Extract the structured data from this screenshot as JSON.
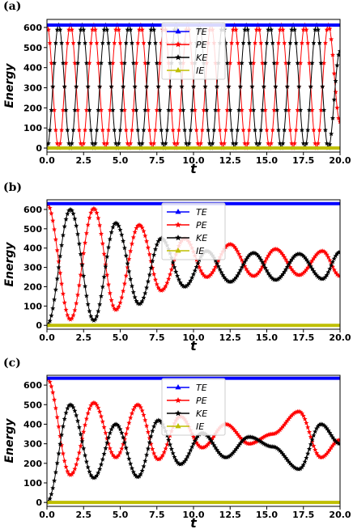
{
  "chart_data": [
    {
      "panel_label": "(a)",
      "type": "line",
      "xlabel": "t",
      "ylabel": "Energy",
      "xlim": [
        0,
        20
      ],
      "ylim": [
        -20,
        640
      ],
      "xticks": [
        "0.0",
        "2.5",
        "5.0",
        "7.5",
        "10.0",
        "12.5",
        "15.0",
        "17.5",
        "20.0"
      ],
      "yticks": [
        "0",
        "100",
        "200",
        "300",
        "400",
        "500",
        "600"
      ],
      "legend_position": "top-center",
      "series": [
        {
          "name": "TE",
          "color": "#0000ff",
          "marker": "filled-triangle",
          "x": [
            0,
            20
          ],
          "y": [
            612,
            612
          ]
        },
        {
          "name": "PE",
          "color": "#ff0000",
          "marker": "star",
          "x": [
            0,
            0.8,
            1.6,
            2.4,
            3.2,
            4.0,
            4.8,
            5.6,
            6.4,
            7.2,
            8.0,
            8.8,
            9.6,
            10.4,
            11.2,
            12.0,
            12.8,
            13.6,
            14.4,
            15.2,
            16.0,
            16.8,
            17.6,
            18.4,
            19.2,
            20.0
          ],
          "y": [
            612,
            0,
            612,
            0,
            612,
            0,
            612,
            0,
            612,
            0,
            612,
            0,
            612,
            0,
            612,
            0,
            612,
            0,
            612,
            0,
            612,
            0,
            612,
            0,
            612,
            130
          ]
        },
        {
          "name": "KE",
          "color": "#000000",
          "marker": "star",
          "x": [
            0,
            0.8,
            1.6,
            2.4,
            3.2,
            4.0,
            4.8,
            5.6,
            6.4,
            7.2,
            8.0,
            8.8,
            9.6,
            10.4,
            11.2,
            12.0,
            12.8,
            13.6,
            14.4,
            15.2,
            16.0,
            16.8,
            17.6,
            18.4,
            19.2,
            20.0
          ],
          "y": [
            0,
            612,
            0,
            612,
            0,
            612,
            0,
            612,
            0,
            612,
            0,
            612,
            0,
            612,
            0,
            612,
            0,
            612,
            0,
            612,
            0,
            612,
            0,
            612,
            0,
            482
          ]
        },
        {
          "name": "IE",
          "color": "#bfbf00",
          "marker": "filled-triangle",
          "x": [
            0,
            20
          ],
          "y": [
            0,
            0
          ]
        }
      ]
    },
    {
      "panel_label": "(b)",
      "type": "line",
      "xlabel": "t",
      "ylabel": "Energy",
      "xlim": [
        0,
        20
      ],
      "ylim": [
        -20,
        650
      ],
      "xticks": [
        "0.0",
        "2.5",
        "5.0",
        "7.5",
        "10.0",
        "12.5",
        "15.0",
        "17.5",
        "20.0"
      ],
      "yticks": [
        "0",
        "100",
        "200",
        "300",
        "400",
        "500",
        "600"
      ],
      "legend_position": "top-center",
      "series": [
        {
          "name": "TE",
          "color": "#0000ff",
          "marker": "filled-triangle",
          "x": [
            0,
            20
          ],
          "y": [
            630,
            630
          ]
        },
        {
          "name": "PE",
          "color": "#ff0000",
          "marker": "star",
          "x": [
            0,
            1.6,
            3.2,
            4.7,
            6.3,
            7.8,
            9.4,
            10.9,
            12.5,
            14.1,
            15.6,
            17.2,
            18.8,
            20.0
          ],
          "y": [
            630,
            30,
            605,
            80,
            520,
            180,
            450,
            250,
            420,
            255,
            395,
            260,
            385,
            255
          ]
        },
        {
          "name": "KE",
          "color": "#000000",
          "marker": "star",
          "x": [
            0,
            1.6,
            3.2,
            4.7,
            6.3,
            7.8,
            9.4,
            10.9,
            12.5,
            14.1,
            15.6,
            17.2,
            18.8,
            20.0
          ],
          "y": [
            0,
            600,
            25,
            530,
            110,
            450,
            200,
            385,
            225,
            375,
            235,
            370,
            240,
            380
          ]
        },
        {
          "name": "IE",
          "color": "#bfbf00",
          "marker": "filled-triangle",
          "x": [
            0,
            20
          ],
          "y": [
            0,
            0
          ]
        }
      ]
    },
    {
      "panel_label": "(c)",
      "type": "line",
      "xlabel": "t",
      "ylabel": "Energy",
      "xlim": [
        0,
        20
      ],
      "ylim": [
        -20,
        650
      ],
      "xticks": [
        "0.0",
        "2.5",
        "5.0",
        "7.5",
        "10.0",
        "12.5",
        "15.0",
        "17.5",
        "20.0"
      ],
      "yticks": [
        "0",
        "100",
        "200",
        "300",
        "400",
        "500",
        "600"
      ],
      "legend_position": "top-center",
      "series": [
        {
          "name": "TE",
          "color": "#0000ff",
          "marker": "filled-triangle",
          "x": [
            0,
            20
          ],
          "y": [
            635,
            635
          ]
        },
        {
          "name": "PE",
          "color": "#ff0000",
          "marker": "star",
          "x": [
            0,
            1.6,
            3.2,
            4.7,
            6.2,
            7.6,
            9.1,
            10.6,
            12.2,
            13.8,
            15.4,
            17.2,
            18.7,
            20.0
          ],
          "y": [
            635,
            140,
            510,
            230,
            500,
            220,
            440,
            280,
            400,
            300,
            350,
            465,
            230,
            320
          ]
        },
        {
          "name": "KE",
          "color": "#000000",
          "marker": "star",
          "x": [
            0,
            1.6,
            3.2,
            4.7,
            6.2,
            7.6,
            9.1,
            10.6,
            12.2,
            13.8,
            15.4,
            17.2,
            18.7,
            20.0
          ],
          "y": [
            0,
            500,
            125,
            400,
            130,
            420,
            195,
            355,
            230,
            335,
            285,
            170,
            400,
            300
          ]
        },
        {
          "name": "IE",
          "color": "#bfbf00",
          "marker": "filled-triangle",
          "x": [
            0,
            20
          ],
          "y": [
            0,
            0
          ]
        }
      ]
    }
  ]
}
